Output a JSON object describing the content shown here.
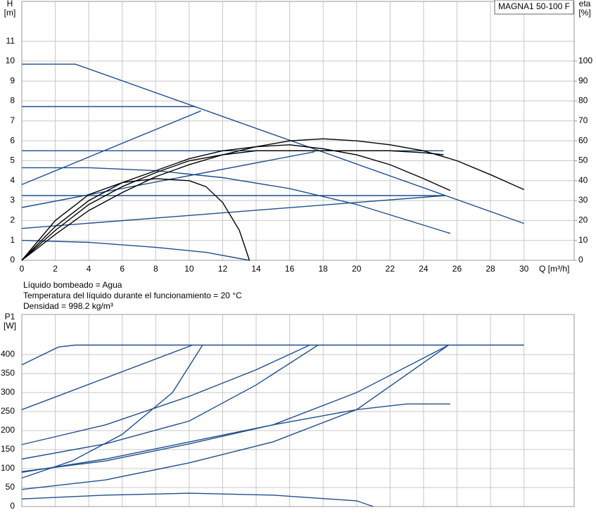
{
  "chart_data": [
    {
      "type": "line",
      "title": "MAGNA1 50-100 F",
      "ylabel": "H",
      "yunit": "[m]",
      "y2label": "eta",
      "y2unit": "[%]",
      "xlabel": "Q [m³/h]",
      "xlim": [
        0,
        33
      ],
      "ylim": [
        0,
        13
      ],
      "y2lim": [
        0,
        130
      ],
      "xticks": [
        0,
        2,
        4,
        6,
        8,
        10,
        12,
        14,
        16,
        18,
        20,
        22,
        24,
        26,
        28,
        30
      ],
      "yticks": [
        0,
        1,
        2,
        3,
        4,
        5,
        6,
        7,
        8,
        9,
        10,
        11
      ],
      "y2ticks": [
        0,
        10,
        20,
        30,
        40,
        50,
        60,
        70,
        80,
        90,
        100
      ],
      "grid": true,
      "xtick_labels": true,
      "annotations": [
        "Líquido bombeado = Agua",
        "Temperatura del líquido durante el funcionamiento = 20 °C",
        "Densidad = 998.2 kg/m³"
      ],
      "series": [
        {
          "color": "#1f4e8c",
          "x": [
            0,
            3.2,
            30
          ],
          "values": [
            9.85,
            9.85,
            1.85
          ]
        },
        {
          "color": "#1f4e8c",
          "x": [
            0,
            10.4
          ],
          "values": [
            7.72,
            7.72
          ]
        },
        {
          "color": "#1f4e8c",
          "x": [
            0,
            10.7
          ],
          "values": [
            3.8,
            7.5
          ]
        },
        {
          "color": "#1f4e8c",
          "x": [
            0,
            25.2
          ],
          "values": [
            5.5,
            5.5
          ]
        },
        {
          "color": "#1f4e8c",
          "x": [
            0,
            17.5
          ],
          "values": [
            2.65,
            5.45
          ]
        },
        {
          "color": "#1f4e8c",
          "x": [
            0,
            25.3
          ],
          "values": [
            3.25,
            3.25
          ]
        },
        {
          "color": "#1f4e8c",
          "x": [
            0,
            25.3
          ],
          "values": [
            1.6,
            3.25
          ]
        },
        {
          "color": "#1f4e8c",
          "x": [
            0,
            4,
            8,
            12,
            16,
            20,
            25.6
          ],
          "values": [
            4.65,
            4.65,
            4.5,
            4.15,
            3.6,
            2.8,
            1.35
          ]
        },
        {
          "color": "#1f4e8c",
          "x": [
            0,
            4,
            8,
            11,
            13.6
          ],
          "values": [
            1.0,
            0.9,
            0.65,
            0.4,
            0.0
          ]
        },
        {
          "color": "#000000",
          "axis": "y2",
          "x": [
            0,
            2,
            4,
            6,
            8,
            10,
            11,
            12,
            13,
            13.6
          ],
          "values": [
            0,
            20,
            33,
            39,
            41,
            40,
            37,
            29,
            15,
            0
          ]
        },
        {
          "color": "#000000",
          "axis": "y2",
          "x": [
            0,
            2,
            4,
            6,
            8,
            10,
            12,
            14,
            16,
            18,
            20,
            22,
            24,
            25.6
          ],
          "values": [
            0,
            17,
            30,
            39,
            45,
            51,
            55,
            57,
            58,
            56,
            53,
            48,
            41,
            35
          ]
        },
        {
          "color": "#000000",
          "axis": "y2",
          "x": [
            0,
            2,
            4,
            6,
            8,
            10,
            12,
            14,
            16,
            18,
            20,
            22,
            24,
            25.2
          ],
          "values": [
            0,
            15,
            28,
            37,
            44,
            50,
            53,
            55,
            55,
            55,
            55,
            55,
            54,
            53
          ]
        },
        {
          "color": "#000000",
          "axis": "y2",
          "x": [
            0,
            2,
            4,
            6,
            8,
            10,
            12,
            14,
            16,
            18,
            20,
            22,
            24,
            26,
            28,
            30
          ],
          "values": [
            0,
            13,
            25,
            34,
            42,
            48,
            53,
            57,
            60,
            61,
            60,
            58,
            55,
            50,
            43,
            35.5
          ]
        }
      ]
    },
    {
      "type": "line",
      "ylabel": "P1",
      "yunit": "[W]",
      "xlim": [
        0,
        33
      ],
      "ylim": [
        0,
        500
      ],
      "xticks": [
        0,
        2,
        4,
        6,
        8,
        10,
        12,
        14,
        16,
        18,
        20,
        22,
        24,
        26,
        28,
        30
      ],
      "yticks": [
        0,
        50,
        100,
        150,
        200,
        250,
        300,
        350,
        400
      ],
      "grid": true,
      "xtick_labels": false,
      "series": [
        {
          "color": "#1f4e8c",
          "x": [
            0,
            2.2,
            3.2,
            30
          ],
          "values": [
            373,
            420,
            425,
            425
          ]
        },
        {
          "color": "#1f4e8c",
          "x": [
            0,
            10.2
          ],
          "values": [
            255,
            425
          ]
        },
        {
          "color": "#1f4e8c",
          "x": [
            0,
            3,
            6,
            9,
            10.8
          ],
          "values": [
            75,
            120,
            190,
            300,
            425
          ]
        },
        {
          "color": "#1f4e8c",
          "x": [
            0,
            5,
            10,
            14,
            17.2
          ],
          "values": [
            163,
            215,
            290,
            360,
            425
          ]
        },
        {
          "color": "#1f4e8c",
          "x": [
            0,
            5,
            10,
            14,
            17.7
          ],
          "values": [
            125,
            165,
            225,
            320,
            425
          ]
        },
        {
          "color": "#1f4e8c",
          "x": [
            0,
            5,
            10,
            15,
            20,
            25.5
          ],
          "values": [
            92,
            120,
            165,
            215,
            300,
            425
          ]
        },
        {
          "color": "#1f4e8c",
          "x": [
            0,
            5,
            10,
            15,
            20,
            25.5
          ],
          "values": [
            45,
            70,
            115,
            170,
            255,
            425
          ]
        },
        {
          "color": "#1f4e8c",
          "x": [
            0,
            5,
            10,
            15,
            20,
            23,
            25.6
          ],
          "values": [
            90,
            125,
            170,
            215,
            255,
            270,
            270
          ]
        },
        {
          "color": "#1f4e8c",
          "x": [
            0,
            5,
            10,
            15,
            20,
            21
          ],
          "values": [
            20,
            30,
            35,
            30,
            15,
            0
          ]
        }
      ]
    }
  ]
}
